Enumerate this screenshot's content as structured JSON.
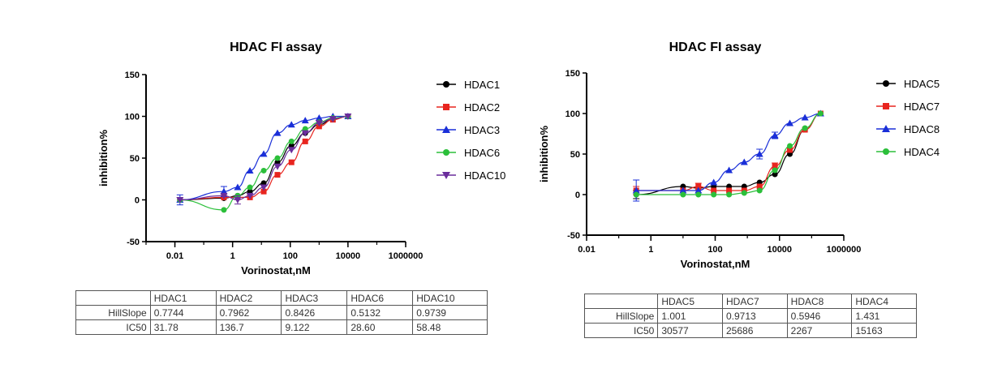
{
  "chart_data": [
    {
      "type": "scatter",
      "title": "HDAC FI assay",
      "xlabel": "Vorinostat,nM",
      "ylabel": "inhibition%",
      "xscale": "log",
      "xlim": [
        0.001,
        1000000
      ],
      "ylim": [
        -50,
        150
      ],
      "x_ticks": [
        "0.01",
        "1",
        "100",
        "10000",
        "1000000"
      ],
      "y_ticks": [
        "150",
        "100",
        "50",
        "0",
        "-50"
      ],
      "legend_position": "right",
      "fit": "sigmoidal dose-response (Hill)",
      "series": [
        {
          "name": "HDAC1",
          "color": "#000000",
          "marker": "circle",
          "x": [
            0.015,
            0.5,
            1.5,
            4,
            12,
            36,
            110,
            330,
            1000,
            3000,
            10000
          ],
          "y": [
            0,
            2,
            5,
            10,
            20,
            45,
            65,
            80,
            90,
            97,
            100
          ],
          "err": [
            3,
            3,
            3,
            3,
            3,
            3,
            3,
            3,
            3,
            3,
            3
          ]
        },
        {
          "name": "HDAC2",
          "color": "#e8251f",
          "marker": "square",
          "x": [
            0.015,
            0.5,
            1.5,
            4,
            12,
            36,
            110,
            330,
            1000,
            3000,
            10000
          ],
          "y": [
            0,
            3,
            3,
            3,
            10,
            30,
            45,
            70,
            88,
            96,
            100
          ],
          "err": [
            3,
            3,
            3,
            3,
            3,
            3,
            3,
            3,
            3,
            3,
            3
          ]
        },
        {
          "name": "HDAC3",
          "color": "#1a2fd8",
          "marker": "triangle",
          "x": [
            0.015,
            0.5,
            1.5,
            4,
            12,
            36,
            110,
            330,
            1000,
            3000,
            10000
          ],
          "y": [
            0,
            10,
            15,
            35,
            55,
            80,
            90,
            95,
            98,
            100,
            100
          ],
          "err": [
            6,
            6,
            3,
            3,
            3,
            3,
            3,
            3,
            3,
            3,
            3
          ]
        },
        {
          "name": "HDAC6",
          "color": "#2bbf3a",
          "marker": "circle",
          "x": [
            0.015,
            0.5,
            1.5,
            4,
            12,
            36,
            110,
            330,
            1000,
            3000,
            10000
          ],
          "y": [
            0,
            -12,
            5,
            15,
            35,
            50,
            70,
            85,
            93,
            98,
            100
          ],
          "err": [
            3,
            3,
            3,
            3,
            3,
            3,
            3,
            3,
            3,
            3,
            3
          ]
        },
        {
          "name": "HDAC10",
          "color": "#6a2d9c",
          "marker": "triangle-down",
          "x": [
            0.015,
            0.5,
            1.5,
            4,
            12,
            36,
            110,
            330,
            1000,
            3000,
            10000
          ],
          "y": [
            0,
            5,
            0,
            5,
            15,
            40,
            60,
            80,
            92,
            97,
            100
          ],
          "err": [
            3,
            3,
            5,
            3,
            3,
            3,
            3,
            3,
            3,
            3,
            3
          ]
        }
      ]
    },
    {
      "type": "scatter",
      "title": "HDAC FI assay",
      "xlabel": "Vorinostat,nM",
      "ylabel": "inhibition%",
      "xscale": "log",
      "xlim": [
        0.01,
        1000000
      ],
      "ylim": [
        -50,
        150
      ],
      "x_ticks": [
        "0.01",
        "1",
        "100",
        "10000",
        "1000000"
      ],
      "y_ticks": [
        "150",
        "100",
        "50",
        "0",
        "-50"
      ],
      "legend_position": "right",
      "fit": "sigmoidal dose-response (Hill)",
      "series": [
        {
          "name": "HDAC5",
          "color": "#000000",
          "marker": "circle",
          "x": [
            0.35,
            10,
            30,
            90,
            270,
            800,
            2400,
            7200,
            21000,
            62000,
            190000
          ],
          "y": [
            0,
            10,
            8,
            10,
            10,
            10,
            15,
            25,
            50,
            80,
            100
          ],
          "err": [
            5,
            3,
            3,
            3,
            3,
            3,
            3,
            3,
            3,
            3,
            3
          ]
        },
        {
          "name": "HDAC7",
          "color": "#e8251f",
          "marker": "square",
          "x": [
            0.35,
            10,
            30,
            90,
            270,
            800,
            2400,
            7200,
            21000,
            62000,
            190000
          ],
          "y": [
            5,
            5,
            10,
            5,
            5,
            5,
            10,
            35,
            55,
            80,
            100
          ],
          "err": [
            5,
            3,
            4,
            3,
            3,
            3,
            3,
            4,
            3,
            3,
            3
          ]
        },
        {
          "name": "HDAC8",
          "color": "#1a2fd8",
          "marker": "triangle",
          "x": [
            0.35,
            10,
            30,
            90,
            270,
            800,
            2400,
            7200,
            21000,
            62000,
            190000
          ],
          "y": [
            5,
            5,
            5,
            15,
            30,
            40,
            50,
            73,
            88,
            95,
            100
          ],
          "err": [
            13,
            3,
            3,
            3,
            3,
            3,
            6,
            4,
            3,
            3,
            3
          ]
        },
        {
          "name": "HDAC4",
          "color": "#2bbf3a",
          "marker": "circle",
          "x": [
            0.35,
            10,
            30,
            90,
            270,
            800,
            2400,
            7200,
            21000,
            62000,
            190000
          ],
          "y": [
            0,
            0,
            0,
            0,
            0,
            2,
            5,
            30,
            60,
            82,
            100
          ],
          "err": [
            3,
            3,
            3,
            3,
            3,
            3,
            3,
            3,
            3,
            3,
            3
          ]
        }
      ]
    }
  ],
  "tables": {
    "left": {
      "headers": [
        "",
        "HDAC1",
        "HDAC2",
        "HDAC3",
        "HDAC6",
        "HDAC10"
      ],
      "rows": [
        [
          "HillSlope",
          "0.7744",
          "0.7962",
          "0.8426",
          "0.5132",
          "0.9739"
        ],
        [
          "IC50",
          "31.78",
          "136.7",
          "9.122",
          "28.60",
          "58.48"
        ]
      ]
    },
    "right": {
      "headers": [
        "",
        "HDAC5",
        "HDAC7",
        "HDAC8",
        "HDAC4"
      ],
      "rows": [
        [
          "HillSlope",
          "1.001",
          "0.9713",
          "0.5946",
          "1.431"
        ],
        [
          "IC50",
          "30577",
          "25686",
          "2267",
          "15163"
        ]
      ]
    }
  }
}
